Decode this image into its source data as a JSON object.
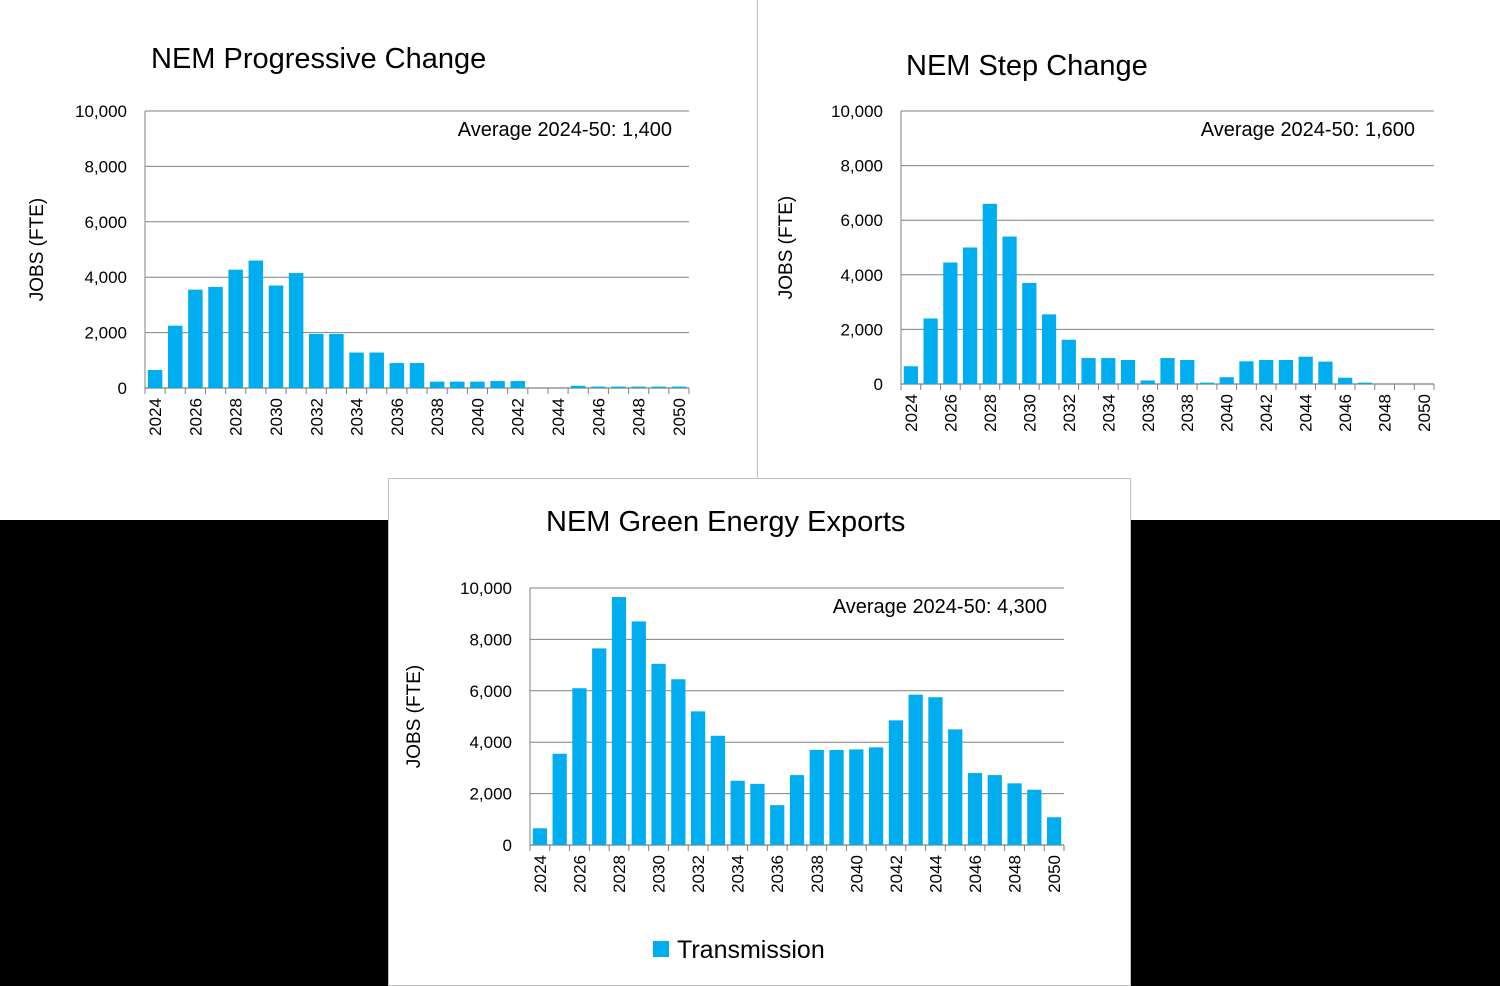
{
  "colors": {
    "bar": "#00aeef",
    "grid": "#808080",
    "background": "#ffffff",
    "outer": "#000000"
  },
  "legend": {
    "label": "Transmission"
  },
  "chart_data": [
    {
      "type": "bar",
      "title": "NEM Progressive Change",
      "annotation": "Average 2024-50: 1,400",
      "xlabel": "",
      "ylabel": "JOBS (FTE)",
      "ylim": [
        0,
        10000
      ],
      "yticks": [
        0,
        2000,
        4000,
        6000,
        8000,
        10000
      ],
      "ytick_labels": [
        "0",
        "2,000",
        "4,000",
        "6,000",
        "8,000",
        "10,000"
      ],
      "categories": [
        2024,
        2025,
        2026,
        2027,
        2028,
        2029,
        2030,
        2031,
        2032,
        2033,
        2034,
        2035,
        2036,
        2037,
        2038,
        2039,
        2040,
        2041,
        2042,
        2043,
        2044,
        2045,
        2046,
        2047,
        2048,
        2049,
        2050
      ],
      "xtick_labels": [
        "2024",
        "2026",
        "2028",
        "2030",
        "2032",
        "2034",
        "2036",
        "2038",
        "2040",
        "2042",
        "2044",
        "2046",
        "2048",
        "2050"
      ],
      "series": [
        {
          "name": "Transmission",
          "values": [
            650,
            2250,
            3550,
            3650,
            4270,
            4600,
            3700,
            4150,
            1950,
            1950,
            1280,
            1280,
            900,
            900,
            230,
            230,
            230,
            250,
            250,
            0,
            0,
            80,
            50,
            50,
            50,
            50,
            50
          ]
        }
      ]
    },
    {
      "type": "bar",
      "title": "NEM Step Change",
      "annotation": "Average 2024-50: 1,600",
      "xlabel": "",
      "ylabel": "JOBS (FTE)",
      "ylim": [
        0,
        10000
      ],
      "yticks": [
        0,
        2000,
        4000,
        6000,
        8000,
        10000
      ],
      "ytick_labels": [
        "0",
        "2,000",
        "4,000",
        "6,000",
        "8,000",
        "10,000"
      ],
      "categories": [
        2024,
        2025,
        2026,
        2027,
        2028,
        2029,
        2030,
        2031,
        2032,
        2033,
        2034,
        2035,
        2036,
        2037,
        2038,
        2039,
        2040,
        2041,
        2042,
        2043,
        2044,
        2045,
        2046,
        2047,
        2048,
        2049,
        2050
      ],
      "xtick_labels": [
        "2024",
        "2026",
        "2028",
        "2030",
        "2032",
        "2034",
        "2036",
        "2038",
        "2040",
        "2042",
        "2044",
        "2046",
        "2048",
        "2050"
      ],
      "series": [
        {
          "name": "Transmission",
          "values": [
            650,
            2400,
            4450,
            5000,
            6600,
            5400,
            3700,
            2550,
            1620,
            950,
            950,
            880,
            130,
            950,
            880,
            50,
            250,
            830,
            880,
            880,
            1000,
            820,
            230,
            50,
            0,
            0,
            0
          ]
        }
      ]
    },
    {
      "type": "bar",
      "title": "NEM Green Energy Exports",
      "annotation": "Average 2024-50: 4,300",
      "xlabel": "",
      "ylabel": "JOBS (FTE)",
      "ylim": [
        0,
        10000
      ],
      "yticks": [
        0,
        2000,
        4000,
        6000,
        8000,
        10000
      ],
      "ytick_labels": [
        "0",
        "2,000",
        "4,000",
        "6,000",
        "8,000",
        "10,000"
      ],
      "categories": [
        2024,
        2025,
        2026,
        2027,
        2028,
        2029,
        2030,
        2031,
        2032,
        2033,
        2034,
        2035,
        2036,
        2037,
        2038,
        2039,
        2040,
        2041,
        2042,
        2043,
        2044,
        2045,
        2046,
        2047,
        2048,
        2049,
        2050
      ],
      "xtick_labels": [
        "2024",
        "2026",
        "2028",
        "2030",
        "2032",
        "2034",
        "2036",
        "2038",
        "2040",
        "2042",
        "2044",
        "2046",
        "2048",
        "2050"
      ],
      "series": [
        {
          "name": "Transmission",
          "values": [
            650,
            3550,
            6100,
            7650,
            9650,
            8700,
            7050,
            6450,
            5200,
            4250,
            2500,
            2380,
            1550,
            2720,
            3700,
            3700,
            3720,
            3800,
            4850,
            5850,
            5750,
            4500,
            2800,
            2720,
            2400,
            2150,
            1080
          ]
        }
      ]
    }
  ]
}
